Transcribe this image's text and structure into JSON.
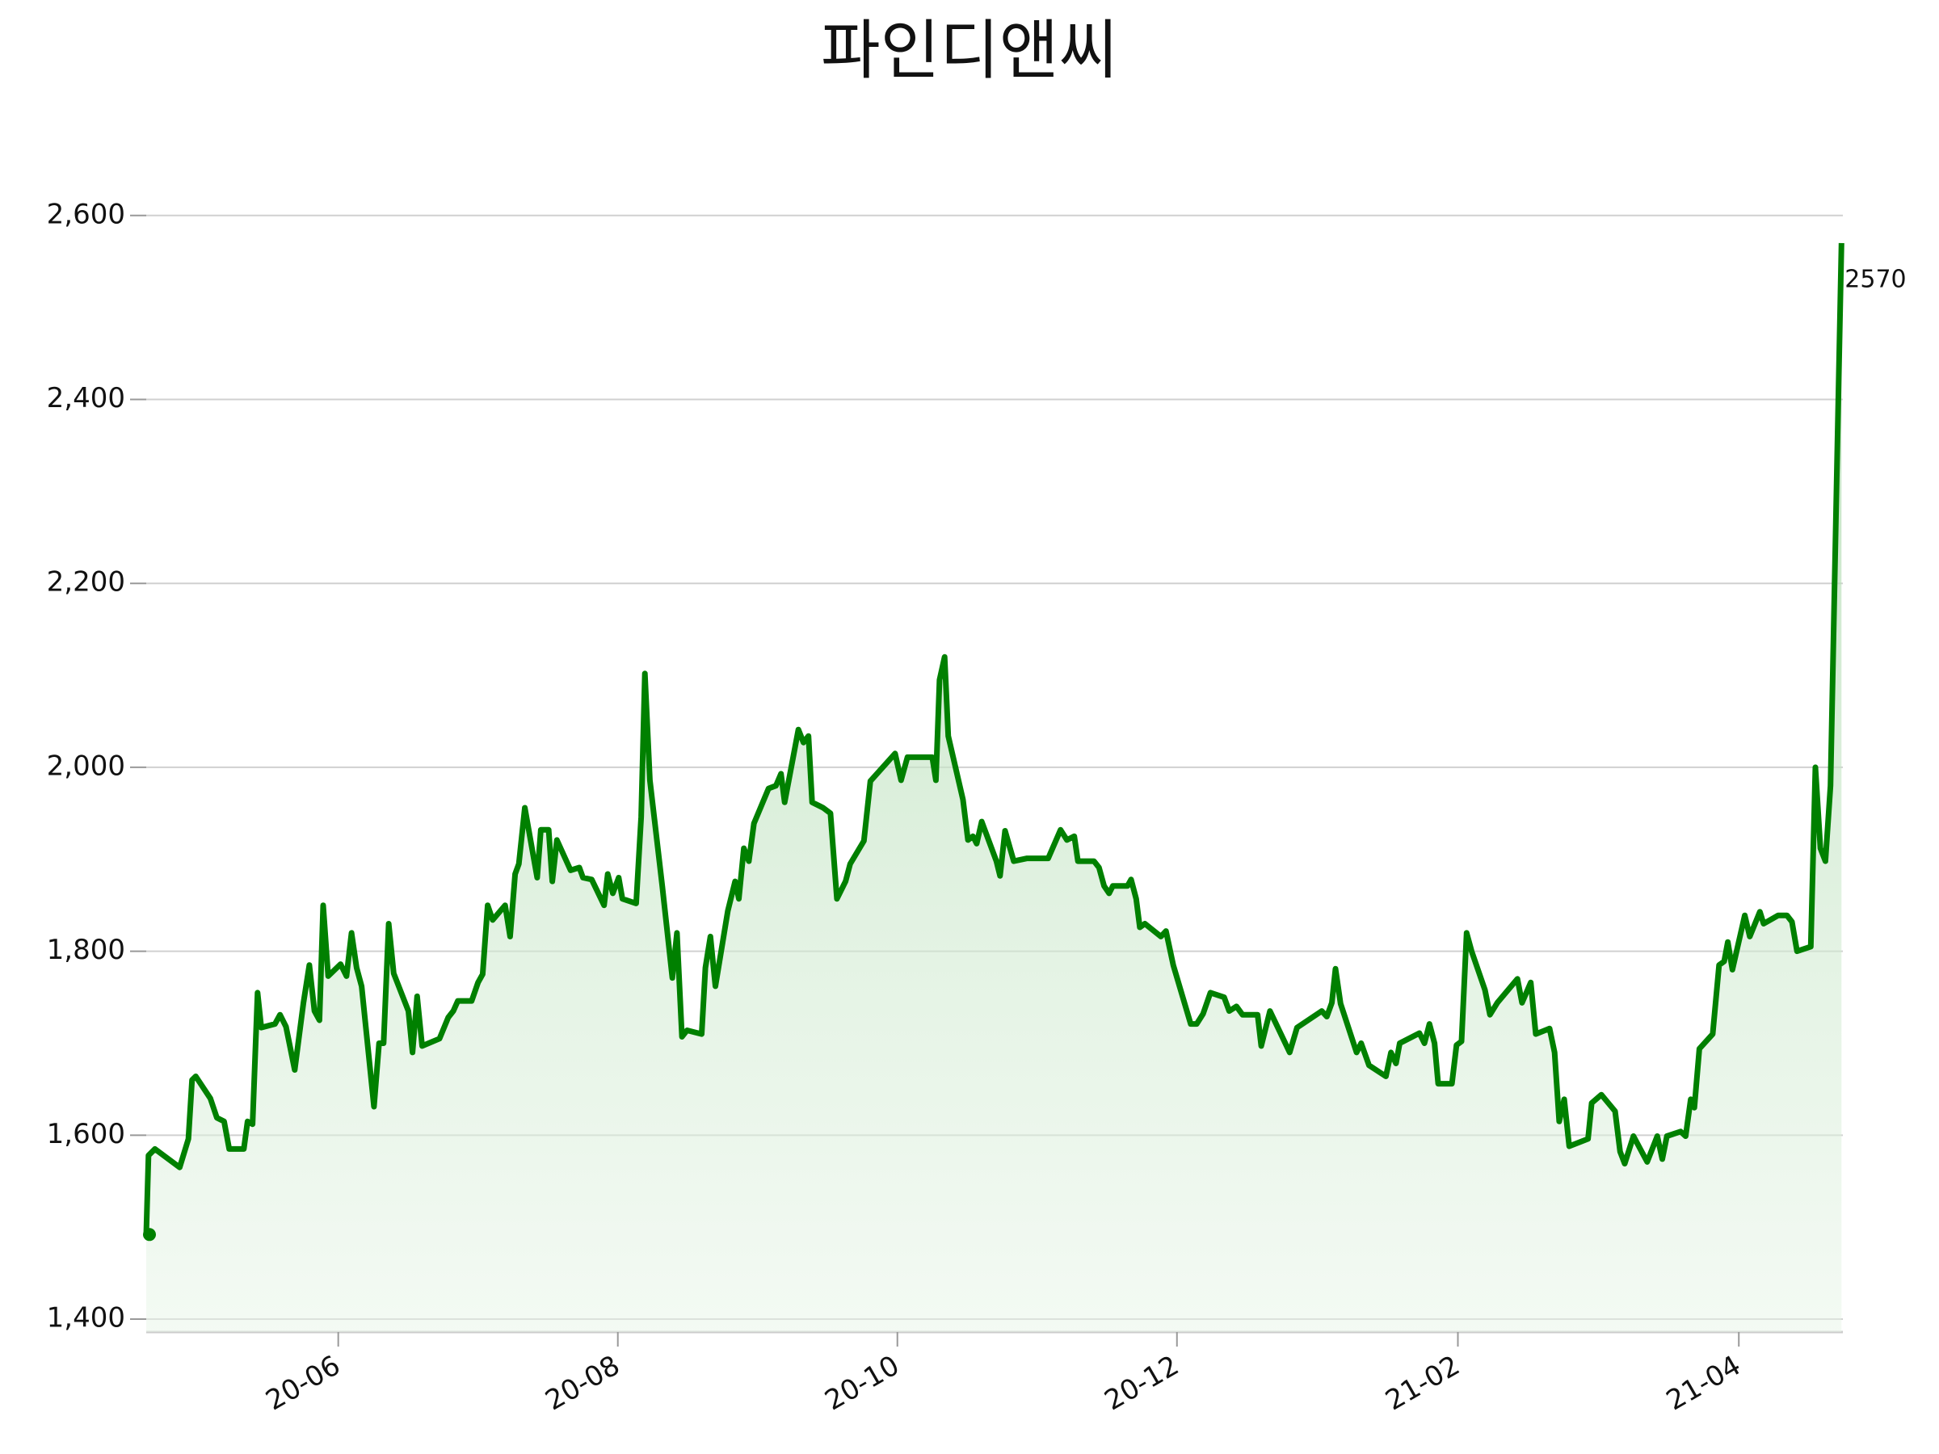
{
  "chart_data": {
    "type": "line",
    "title": "파인디앤씨",
    "x": [
      0,
      0.5,
      1.9,
      7.3,
      9.2,
      10.0,
      10.8,
      14.0,
      15.4,
      17.0,
      18.1,
      21.3,
      22.1,
      23.2,
      24.3,
      25.1,
      28.1,
      29.2,
      30.5,
      32.4,
      34.3,
      35.6,
      36.7,
      37.8,
      38.6,
      39.7,
      42.4,
      43.7,
      44.8,
      45.9,
      47.0,
      49.7,
      50.8,
      51.8,
      52.9,
      54.0,
      57.2,
      58.1,
      59.1,
      60.2,
      64.0,
      65.9,
      67.0,
      68.0,
      71.0,
      72.4,
      73.4,
      74.5,
      75.6,
      78.3,
      79.4,
      80.5,
      81.3,
      82.6,
      85.3,
      86.1,
      87.8,
      88.6,
      89.6,
      92.6,
      94.5,
      95.3,
      97.2,
      99.9,
      100.7,
      101.8,
      103.1,
      103.9,
      106.9,
      108.0,
      108.8,
      109.9,
      112.6,
      114.8,
      115.8,
      116.9,
      118.0,
      121.2,
      122.0,
      123.1,
      124.2,
      126.9,
      128.5,
      129.3,
      130.4,
      131.5,
      132.6,
      135.8,
      137.4,
      138.5,
      139.3,
      142.3,
      143.4,
      144.5,
      145.3,
      147.7,
      149.3,
      150.7,
      152.6,
      153.6,
      156.6,
      158.0,
      163.4,
      164.7,
      166.1,
      171.5,
      172.3,
      173.1,
      174.2,
      175.0,
      178.2,
      179.3,
      180.4,
      181.2,
      182.3,
      185.5,
      186.3,
      187.4,
      189.3,
      192.2,
      196.8,
      199.5,
      200.9,
      202.5,
      203.3,
      206.8,
      207.9,
      209.0,
      210.1,
      210.9,
      214.1,
      214.9,
      216.0,
      216.8,
      217.9,
      221.4,
      222.5,
      224.1,
      227.9,
      229.2,
      230.6,
      232.2,
      235.2,
      236.3,
      237.9,
      239.2,
      242.5,
      243.3,
      245.2,
      249.5,
      251.1,
      256.5,
      257.6,
      258.7,
      259.5,
      260.6,
      264.1,
      265.1,
      266.8,
      270.5,
      271.6,
      272.7,
      273.5,
      277.8,
      278.9,
      280.0,
      281.1,
      281.9,
      284.9,
      285.9,
      287.0,
      288.1,
      289.2,
      292.1,
      293.2,
      294.8,
      299.2,
      300.2,
      302.1,
      303.2,
      306.2,
      307.3,
      308.3,
      309.4,
      310.5,
      314.6,
      315.4,
      317.5,
      320.5,
      321.6,
      322.6,
      324.5,
      327.5,
      329.7,
      330.8,
      331.8,
      334.8,
      335.9,
      337.0,
      337.8,
      338.9,
      341.8,
      343.2,
      344.3,
      345.1,
      346.1,
      348.8,
      349.9,
      352.1,
      352.9,
      356.1,
      358.0,
      359.1,
      360.2,
      363.2,
      364.2,
      365.3,
      366.4,
      367.5,
      369.9
    ],
    "values": [
      1492,
      1578,
      1585,
      1565,
      1596,
      1660,
      1664,
      1640,
      1619,
      1615,
      1585,
      1585,
      1615,
      1612,
      1755,
      1717,
      1721,
      1731,
      1718,
      1671,
      1744,
      1785,
      1735,
      1725,
      1850,
      1773,
      1786,
      1773,
      1820,
      1782,
      1762,
      1631,
      1700,
      1700,
      1830,
      1776,
      1735,
      1690,
      1751,
      1697,
      1705,
      1728,
      1735,
      1746,
      1746,
      1766,
      1775,
      1850,
      1834,
      1850,
      1816,
      1884,
      1895,
      1956,
      1880,
      1932,
      1932,
      1876,
      1921,
      1888,
      1891,
      1880,
      1878,
      1850,
      1884,
      1863,
      1880,
      1857,
      1852,
      1946,
      2102,
      1986,
      1871,
      1771,
      1820,
      1707,
      1714,
      1710,
      1782,
      1816,
      1762,
      1844,
      1876,
      1857,
      1912,
      1898,
      1939,
      1977,
      1980,
      1993,
      1962,
      2041,
      2027,
      2034,
      1962,
      1956,
      1950,
      1857,
      1876,
      1895,
      1920,
      1985,
      2015,
      1986,
      2011,
      2011,
      1986,
      2095,
      2120,
      2034,
      1965,
      1921,
      1925,
      1917,
      1941,
      1898,
      1882,
      1931,
      1898,
      1901,
      1901,
      1932,
      1921,
      1925,
      1898,
      1898,
      1891,
      1871,
      1863,
      1871,
      1871,
      1878,
      1857,
      1826,
      1830,
      1816,
      1822,
      1785,
      1721,
      1721,
      1732,
      1755,
      1750,
      1735,
      1740,
      1731,
      1731,
      1697,
      1735,
      1690,
      1717,
      1735,
      1729,
      1744,
      1781,
      1743,
      1690,
      1700,
      1676,
      1664,
      1690,
      1678,
      1700,
      1711,
      1700,
      1721,
      1700,
      1656,
      1656,
      1698,
      1702,
      1820,
      1800,
      1758,
      1731,
      1744,
      1770,
      1744,
      1766,
      1710,
      1716,
      1690,
      1615,
      1639,
      1588,
      1596,
      1635,
      1644,
      1626,
      1582,
      1569,
      1599,
      1571,
      1599,
      1574,
      1599,
      1604,
      1599,
      1639,
      1630,
      1694,
      1710,
      1785,
      1789,
      1810,
      1780,
      1839,
      1816,
      1843,
      1830,
      1839,
      1839,
      1832,
      1800,
      1805,
      2000,
      1912,
      1898,
      1980,
      2570
    ],
    "color": "#008000",
    "xlim": [
      0,
      370.2
    ],
    "xticks": [
      {
        "value": 41.9,
        "label": "20-06"
      },
      {
        "value": 102.9,
        "label": "20-08"
      },
      {
        "value": 163.9,
        "label": "20-10"
      },
      {
        "value": 224.9,
        "label": "20-12"
      },
      {
        "value": 286.2,
        "label": "21-02"
      },
      {
        "value": 347.5,
        "label": "21-04"
      }
    ],
    "ylim": [
      1386,
      2620
    ],
    "yticks": [
      {
        "value": 1400,
        "label": "1,400"
      },
      {
        "value": 1600,
        "label": "1,600"
      },
      {
        "value": 1800,
        "label": "1,800"
      },
      {
        "value": 2000,
        "label": "2,000"
      },
      {
        "value": 2200,
        "label": "2,200"
      },
      {
        "value": 2400,
        "label": "2,400"
      },
      {
        "value": 2600,
        "label": "2,600"
      }
    ],
    "grid": true
  }
}
